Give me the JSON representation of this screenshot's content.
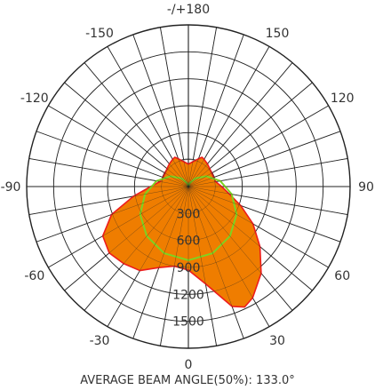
{
  "chart_data": {
    "type": "polar",
    "title": "",
    "angle_labels": [
      {
        "angle": 0,
        "text": "0"
      },
      {
        "angle": 30,
        "text": "30"
      },
      {
        "angle": 60,
        "text": "60"
      },
      {
        "angle": 90,
        "text": "90"
      },
      {
        "angle": 120,
        "text": "120"
      },
      {
        "angle": 150,
        "text": "150"
      },
      {
        "angle": 180,
        "text": "-/+180"
      },
      {
        "angle": -150,
        "text": "-150"
      },
      {
        "angle": -120,
        "text": "-120"
      },
      {
        "angle": -90,
        "text": "-90"
      },
      {
        "angle": -60,
        "text": "-60"
      },
      {
        "angle": -30,
        "text": "-30"
      }
    ],
    "radial_labels": [
      "300",
      "600",
      "900",
      "1200",
      "1500"
    ],
    "r_max": 1800,
    "ring_step": 300,
    "spoke_step_deg": 10,
    "grid": true,
    "series": [
      {
        "color": "#ef7d00",
        "stroke": "#ee1c1c",
        "points": [
          [
            0,
            930
          ],
          [
            10,
            1100
          ],
          [
            20,
            1420
          ],
          [
            25,
            1480
          ],
          [
            30,
            1430
          ],
          [
            40,
            1260
          ],
          [
            50,
            1040
          ],
          [
            60,
            830
          ],
          [
            70,
            620
          ],
          [
            80,
            460
          ],
          [
            90,
            370
          ],
          [
            100,
            310
          ],
          [
            110,
            300
          ],
          [
            120,
            300
          ],
          [
            130,
            310
          ],
          [
            140,
            330
          ],
          [
            150,
            350
          ],
          [
            155,
            360
          ],
          [
            160,
            330
          ],
          [
            170,
            280
          ],
          [
            180,
            250
          ],
          [
            190,
            280
          ],
          [
            200,
            330
          ],
          [
            205,
            360
          ],
          [
            210,
            350
          ],
          [
            220,
            330
          ],
          [
            230,
            310
          ],
          [
            240,
            300
          ],
          [
            250,
            300
          ],
          [
            260,
            320
          ],
          [
            270,
            420
          ],
          [
            280,
            620
          ],
          [
            290,
            910
          ],
          [
            300,
            1100
          ],
          [
            310,
            1150
          ],
          [
            320,
            1120
          ],
          [
            330,
            1080
          ],
          [
            340,
            960
          ],
          [
            350,
            900
          ],
          [
            360,
            930
          ]
        ]
      },
      {
        "color": "#7ed321",
        "fill": "none",
        "points": [
          [
            0,
            820
          ],
          [
            20,
            790
          ],
          [
            40,
            720
          ],
          [
            60,
            620
          ],
          [
            80,
            490
          ],
          [
            100,
            360
          ],
          [
            120,
            230
          ],
          [
            140,
            120
          ],
          [
            160,
            40
          ],
          [
            180,
            0
          ],
          [
            200,
            40
          ],
          [
            220,
            120
          ],
          [
            240,
            230
          ],
          [
            260,
            360
          ],
          [
            280,
            490
          ],
          [
            300,
            620
          ],
          [
            320,
            720
          ],
          [
            340,
            790
          ],
          [
            360,
            820
          ]
        ]
      }
    ],
    "caption": "AVERAGE BEAM ANGLE(50%): 133.0°"
  }
}
